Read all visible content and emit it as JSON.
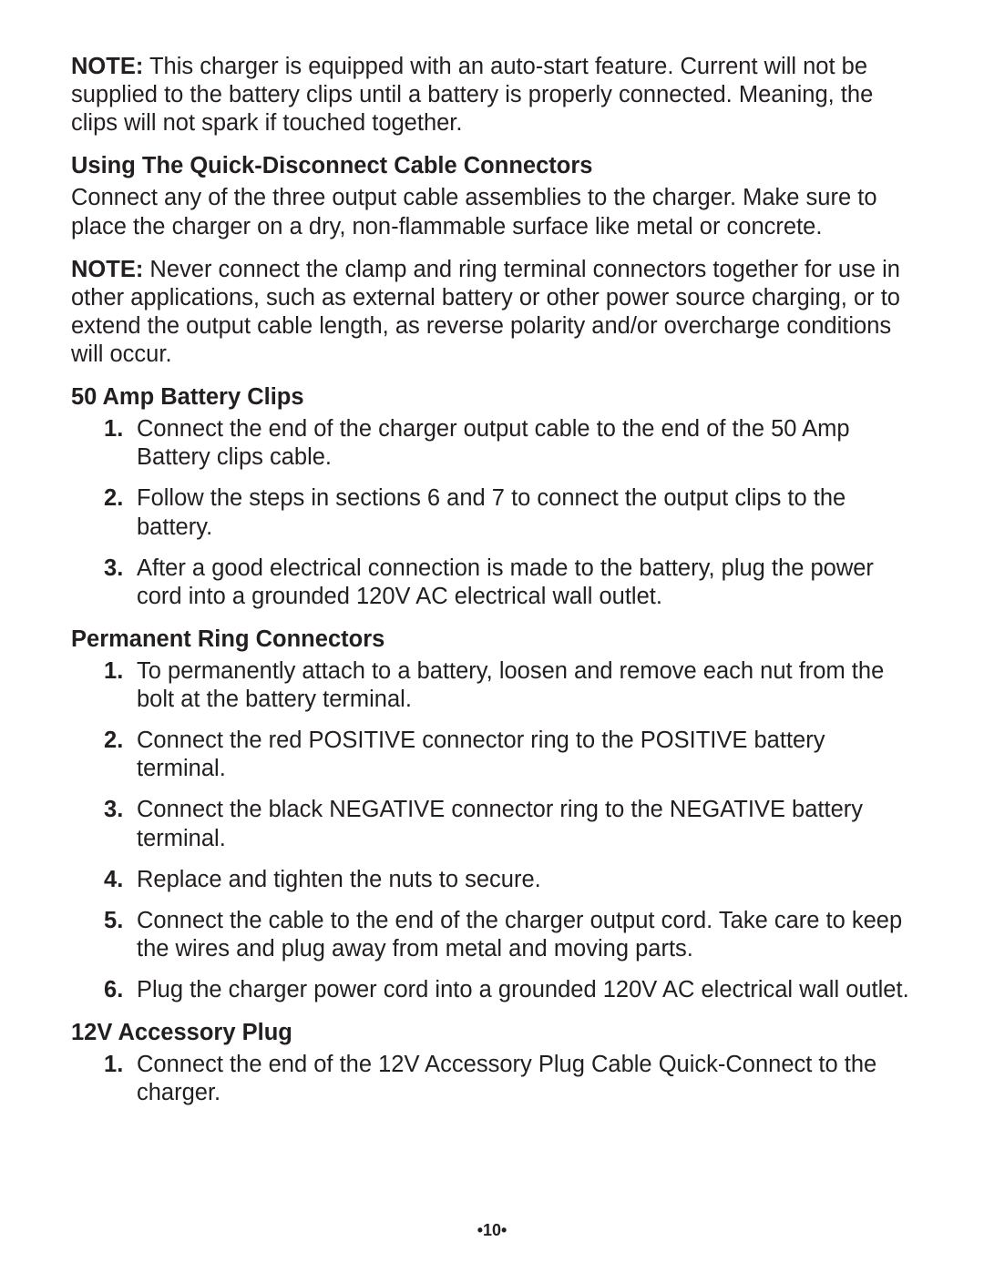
{
  "note1": {
    "label": "NOTE:",
    "text": " This charger is equipped with an auto-start feature. Current will not be supplied to the battery clips until a battery is properly connected. Meaning, the clips will not spark if touched together."
  },
  "section1": {
    "heading": "Using The Quick-Disconnect Cable Connectors",
    "body": "Connect any of the three output cable assemblies to the charger. Make sure to place the charger on a dry, non-flammable surface like metal or concrete."
  },
  "note2": {
    "label": "NOTE:",
    "text": " Never connect the clamp and ring terminal connectors together for use in other applications, such as external battery or other power source charging, or to extend the output cable length, as reverse polarity and/or overcharge conditions will occur."
  },
  "section2": {
    "heading": "50 Amp Battery Clips",
    "items": [
      "Connect the end of the charger output cable to the end of the 50 Amp Battery clips cable.",
      "Follow the steps in sections 6 and 7 to connect the output clips to the battery.",
      "After a good electrical connection is made to the battery, plug the power cord into a grounded 120V AC electrical wall outlet."
    ]
  },
  "section3": {
    "heading": "Permanent Ring Connectors",
    "items": [
      "To permanently attach to a battery, loosen and remove each nut from the bolt at the battery terminal.",
      "Connect the red POSITIVE connector ring to the POSITIVE battery terminal.",
      "Connect the black NEGATIVE connector ring to the NEGATIVE battery terminal.",
      "Replace and tighten the nuts to secure.",
      "Connect the cable to the end of the charger output cord. Take care to keep the wires and plug away from metal and moving parts.",
      "Plug the charger power cord into a grounded 120V AC electrical wall outlet."
    ]
  },
  "section4": {
    "heading": "12V Accessory Plug",
    "items": [
      "Connect the end of the 12V Accessory Plug Cable Quick-Connect to the charger."
    ]
  },
  "page_number": "•10•"
}
